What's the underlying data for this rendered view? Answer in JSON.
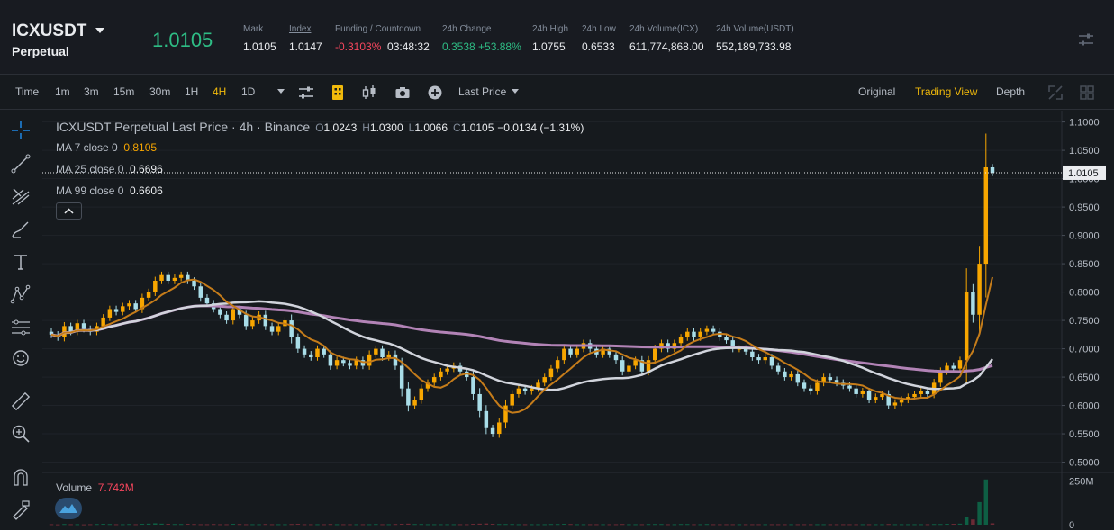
{
  "symbol": {
    "name": "ICXUSDT",
    "type": "Perpetual"
  },
  "last_price": "1.0105",
  "stats": {
    "mark_label": "Mark",
    "mark": "1.0105",
    "index_label": "Index",
    "index": "1.0147",
    "funding_label": "Funding / Countdown",
    "funding_rate": "-0.3103%",
    "countdown": "03:48:32",
    "change_label": "24h Change",
    "change_abs": "0.3538",
    "change_pct": "+53.88%",
    "high_label": "24h High",
    "high": "1.0755",
    "low_label": "24h Low",
    "low": "0.6533",
    "vol_icx_label": "24h Volume(ICX)",
    "vol_icx": "611,774,868.00",
    "vol_usdt_label": "24h Volume(USDT)",
    "vol_usdt": "552,189,733.98"
  },
  "toolbar": {
    "intervals": [
      "Time",
      "1m",
      "3m",
      "15m",
      "30m",
      "1H",
      "4H",
      "1D"
    ],
    "active_interval": "4H",
    "price_type": "Last Price",
    "views": [
      "Original",
      "Trading View",
      "Depth"
    ],
    "active_view": "Trading View"
  },
  "legend": {
    "title": "ICXUSDT Perpetual Last Price · 4h · Binance",
    "o_label": "O",
    "o": "1.0243",
    "h_label": "H",
    "h": "1.0300",
    "l_label": "L",
    "l": "1.0066",
    "c_label": "C",
    "c": "1.0105",
    "change": "−0.0134 (−1.31%)",
    "ma": [
      {
        "label": "MA 7 close 0",
        "value": "0.8105",
        "color": "#f7a600"
      },
      {
        "label": "MA 25 close 0",
        "value": "0.6696",
        "color": "#eaecef"
      },
      {
        "label": "MA 99 close 0",
        "value": "0.6606",
        "color": "#eaecef"
      }
    ]
  },
  "volume": {
    "label": "Volume",
    "value": "7.742M"
  },
  "colors": {
    "up": "#f7a600",
    "down": "#a9dde8",
    "ma7": "#c57c1a",
    "ma25": "#d1d4dc",
    "ma99": "#b283b6",
    "vol_up": "#0e5f44",
    "vol_down": "#6b2a35"
  },
  "chart_data": {
    "type": "candlestick",
    "price_ticks": [
      "1.1000",
      "1.0500",
      "1.0000",
      "0.9500",
      "0.9000",
      "0.8500",
      "0.8000",
      "0.7500",
      "0.7000",
      "0.6500",
      "0.6000",
      "0.5500",
      "0.5000"
    ],
    "price_range": [
      0.485,
      1.12
    ],
    "current_price": "1.0105",
    "volume_ticks": [
      "250M",
      "0"
    ],
    "volume_range": [
      0,
      290
    ],
    "closes": [
      0.725,
      0.72,
      0.74,
      0.73,
      0.745,
      0.735,
      0.73,
      0.74,
      0.755,
      0.77,
      0.765,
      0.775,
      0.78,
      0.77,
      0.79,
      0.8,
      0.82,
      0.83,
      0.82,
      0.825,
      0.83,
      0.82,
      0.81,
      0.79,
      0.78,
      0.77,
      0.76,
      0.75,
      0.77,
      0.76,
      0.74,
      0.75,
      0.76,
      0.74,
      0.73,
      0.74,
      0.75,
      0.72,
      0.7,
      0.69,
      0.685,
      0.7,
      0.69,
      0.67,
      0.68,
      0.675,
      0.67,
      0.68,
      0.67,
      0.69,
      0.7,
      0.685,
      0.69,
      0.67,
      0.63,
      0.6,
      0.61,
      0.63,
      0.64,
      0.65,
      0.66,
      0.665,
      0.67,
      0.66,
      0.65,
      0.62,
      0.59,
      0.56,
      0.55,
      0.57,
      0.6,
      0.62,
      0.63,
      0.625,
      0.63,
      0.64,
      0.65,
      0.665,
      0.68,
      0.7,
      0.69,
      0.7,
      0.71,
      0.7,
      0.69,
      0.7,
      0.69,
      0.68,
      0.66,
      0.67,
      0.68,
      0.66,
      0.68,
      0.7,
      0.71,
      0.7,
      0.71,
      0.72,
      0.73,
      0.72,
      0.73,
      0.735,
      0.73,
      0.72,
      0.715,
      0.7,
      0.7,
      0.695,
      0.685,
      0.68,
      0.685,
      0.67,
      0.66,
      0.65,
      0.655,
      0.64,
      0.63,
      0.625,
      0.64,
      0.65,
      0.645,
      0.64,
      0.635,
      0.63,
      0.62,
      0.625,
      0.61,
      0.615,
      0.62,
      0.6,
      0.605,
      0.61,
      0.615,
      0.62,
      0.625,
      0.62,
      0.64,
      0.66,
      0.67,
      0.665,
      0.68,
      0.8,
      0.76,
      0.85,
      1.02,
      1.0105
    ],
    "volumes": [
      3,
      2,
      4,
      3,
      3,
      2,
      3,
      4,
      5,
      4,
      3,
      3,
      4,
      3,
      5,
      6,
      8,
      6,
      5,
      4,
      4,
      5,
      4,
      3,
      3,
      4,
      3,
      3,
      5,
      4,
      3,
      3,
      3,
      4,
      3,
      3,
      3,
      4,
      5,
      3,
      3,
      3,
      3,
      4,
      3,
      3,
      3,
      3,
      3,
      3,
      4,
      3,
      3,
      4,
      5,
      6,
      4,
      4,
      3,
      3,
      3,
      3,
      3,
      3,
      3,
      5,
      6,
      7,
      5,
      4,
      4,
      4,
      3,
      3,
      3,
      3,
      3,
      4,
      4,
      5,
      4,
      3,
      3,
      3,
      3,
      3,
      3,
      3,
      4,
      3,
      3,
      3,
      4,
      4,
      4,
      3,
      3,
      4,
      4,
      3,
      3,
      4,
      3,
      3,
      3,
      3,
      3,
      3,
      3,
      3,
      3,
      3,
      3,
      3,
      3,
      3,
      3,
      3,
      3,
      3,
      3,
      3,
      3,
      3,
      3,
      3,
      3,
      3,
      3,
      4,
      3,
      3,
      3,
      3,
      3,
      3,
      4,
      4,
      5,
      5,
      6,
      45,
      30,
      130,
      260,
      8
    ]
  }
}
